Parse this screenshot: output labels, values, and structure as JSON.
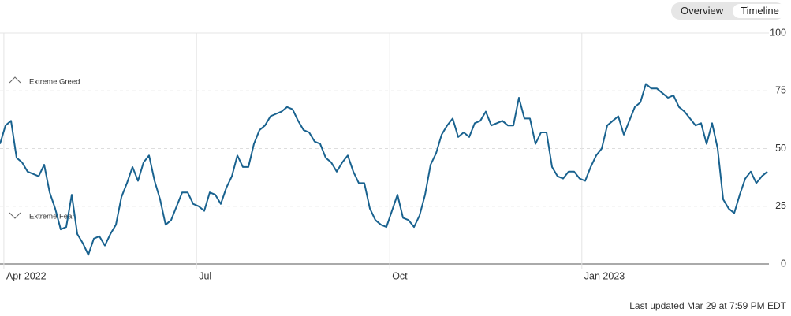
{
  "tabs": [
    "Overview",
    "Timeline"
  ],
  "chart_data": {
    "type": "line",
    "color": "#19628f",
    "values": [
      52,
      60,
      62,
      46,
      44,
      40,
      39,
      38,
      43,
      31,
      24,
      15,
      16,
      30,
      13,
      9,
      4,
      11,
      12,
      8,
      13,
      17,
      29,
      35,
      42,
      36,
      44,
      47,
      36,
      28,
      17,
      19,
      25,
      31,
      31,
      26,
      25,
      23,
      31,
      30,
      26,
      33,
      38,
      47,
      42,
      42,
      52,
      58,
      60,
      64,
      65,
      66,
      68,
      67,
      62,
      58,
      57,
      53,
      52,
      46,
      44,
      40,
      44,
      47,
      40,
      35,
      35,
      24,
      19,
      17,
      16,
      23,
      30,
      20,
      19,
      16,
      21,
      30,
      43,
      48,
      56,
      60,
      63,
      55,
      57,
      55,
      61,
      62,
      66,
      60,
      61,
      62,
      60,
      60,
      72,
      63,
      63,
      52,
      57,
      57,
      42,
      38,
      37,
      40,
      40,
      37,
      36,
      42,
      47,
      50,
      60,
      62,
      64,
      56,
      62,
      68,
      70,
      78,
      76,
      76,
      74,
      72,
      73,
      68,
      66,
      63,
      60,
      61,
      52,
      61,
      50,
      28,
      24,
      22,
      30,
      37,
      40,
      35,
      38,
      40
    ],
    "xlim": [
      0,
      139
    ],
    "xticks": [
      {
        "value": 0.7,
        "label": "Apr 2022"
      },
      {
        "value": 35.6,
        "label": "Jul"
      },
      {
        "value": 70.6,
        "label": "Oct"
      },
      {
        "value": 105.4,
        "label": "Jan 2023"
      }
    ],
    "ylim": [
      0,
      100
    ],
    "yticks": [
      0,
      25,
      50,
      75,
      100
    ],
    "grid": true,
    "annotations": [
      "Extreme Greed",
      "Extreme Fear"
    ]
  },
  "footer": "Last updated Mar 29 at 7:59 PM EDT"
}
